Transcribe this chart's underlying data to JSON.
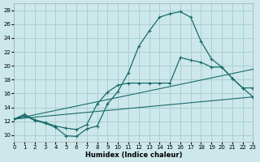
{
  "xlabel": "Humidex (Indice chaleur)",
  "xlim": [
    0,
    23
  ],
  "ylim": [
    9,
    29
  ],
  "yticks": [
    10,
    12,
    14,
    16,
    18,
    20,
    22,
    24,
    26,
    28
  ],
  "xticks": [
    0,
    1,
    2,
    3,
    4,
    5,
    6,
    7,
    8,
    9,
    10,
    11,
    12,
    13,
    14,
    15,
    16,
    17,
    18,
    19,
    20,
    21,
    22,
    23
  ],
  "bg_color": "#cce8ea",
  "grid_color": "#aacfd2",
  "line_color": "#1a6b6b",
  "curve1_x": [
    0,
    1,
    2,
    3,
    4,
    5,
    6,
    7,
    8,
    9,
    10,
    11,
    12,
    13,
    14,
    15,
    16,
    17,
    18,
    19,
    20,
    21,
    22,
    23
  ],
  "curve1_y": [
    12.3,
    12.8,
    12.1,
    11.7,
    11.1,
    9.9,
    9.8,
    10.9,
    11.3,
    14.5,
    16.3,
    19.0,
    22.8,
    25.0,
    27.0,
    27.5,
    27.8,
    27.0,
    23.5,
    21.0,
    19.8,
    18.2,
    16.8,
    15.5
  ],
  "curve2_x": [
    0,
    1,
    2,
    3,
    4,
    5,
    6,
    7,
    8,
    9,
    10,
    11,
    12,
    13,
    14,
    15,
    16,
    17,
    18,
    19,
    20,
    21,
    22,
    23
  ],
  "curve2_y": [
    12.3,
    13.0,
    12.2,
    11.8,
    11.3,
    11.0,
    10.8,
    11.5,
    14.5,
    16.2,
    17.2,
    17.5,
    17.5,
    17.5,
    17.5,
    17.5,
    21.2,
    20.8,
    20.5,
    19.8,
    19.8,
    18.2,
    16.8,
    16.8
  ],
  "line3_x": [
    0,
    23
  ],
  "line3_y": [
    12.3,
    19.5
  ],
  "line4_x": [
    0,
    23
  ],
  "line4_y": [
    12.3,
    15.5
  ]
}
